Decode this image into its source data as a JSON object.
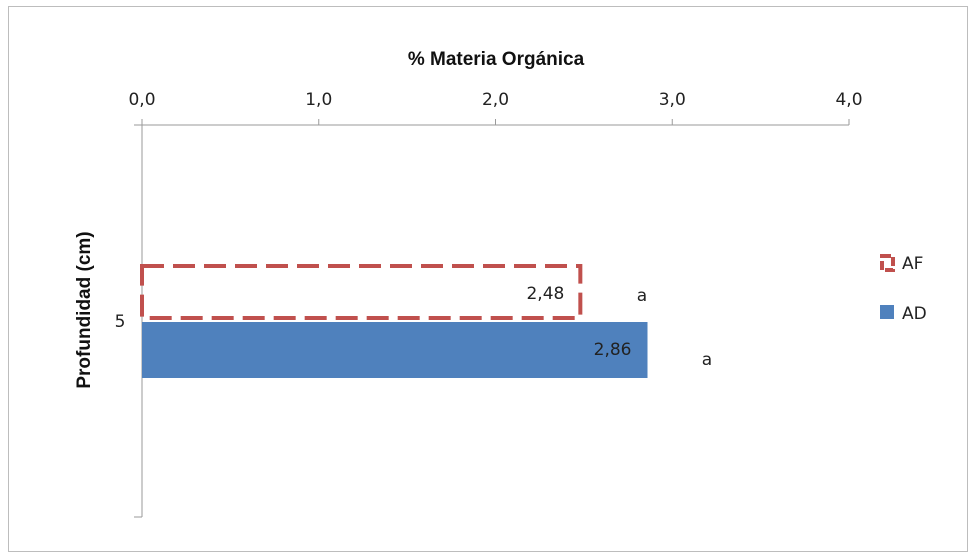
{
  "chart_data": {
    "type": "bar",
    "orientation": "horizontal",
    "title": "",
    "xlabel": "% Materia Orgánica",
    "ylabel": "Profundidad (cm)",
    "xlim": [
      0,
      4
    ],
    "x_ticks": [
      "0,0",
      "1,0",
      "2,0",
      "3,0",
      "4,0"
    ],
    "categories": [
      "5"
    ],
    "series": [
      {
        "name": "AF",
        "values": [
          2.48
        ],
        "value_labels": [
          "2,48"
        ],
        "significance": [
          "a"
        ],
        "style": "dashed-outline",
        "color": "#c0504d"
      },
      {
        "name": "AD",
        "values": [
          2.86
        ],
        "value_labels": [
          "2,86"
        ],
        "significance": [
          "a"
        ],
        "style": "solid",
        "color": "#4f81bd"
      }
    ],
    "grid": false,
    "legend_position": "right"
  }
}
